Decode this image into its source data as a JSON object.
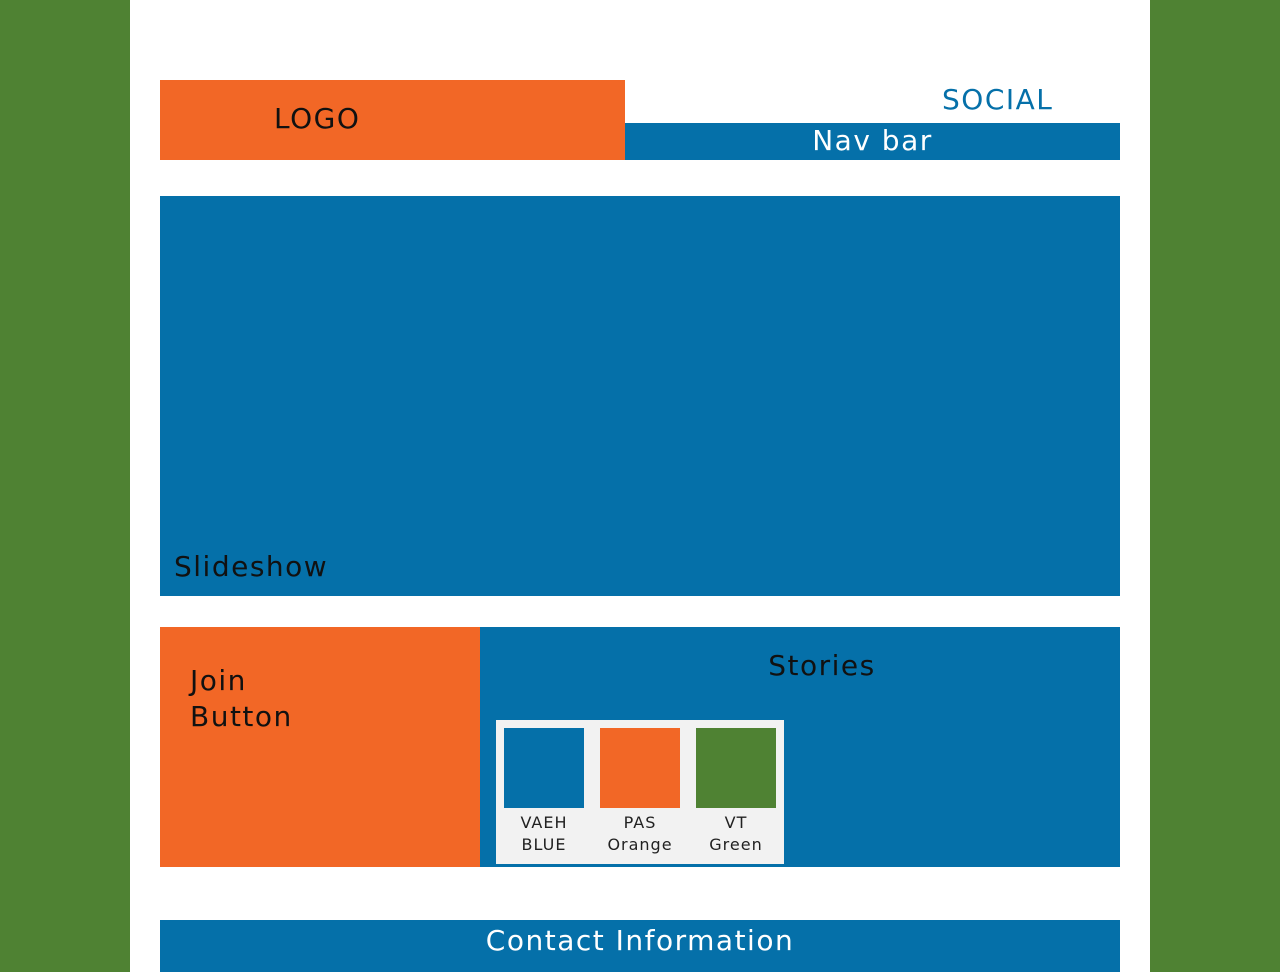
{
  "header": {
    "logo_label": "LOGO",
    "social_label": "SOCIAL",
    "nav_label": "Nav bar"
  },
  "slideshow": {
    "label": "Slideshow"
  },
  "join": {
    "line1": "Join",
    "line2": "Button"
  },
  "stories": {
    "title": "Stories",
    "palette": [
      {
        "line1": "VAEH",
        "line2": "BLUE",
        "color": "#0570a9"
      },
      {
        "line1": "PAS",
        "line2": "Orange",
        "color": "#f26726"
      },
      {
        "line1": "VT",
        "line2": "Green",
        "color": "#4f8233"
      }
    ]
  },
  "footer": {
    "contact_label": "Contact Information"
  },
  "colors": {
    "blue": "#0570a9",
    "orange": "#f26726",
    "green": "#4f8233",
    "white": "#ffffff",
    "palette_bg": "#f2f2f2"
  }
}
